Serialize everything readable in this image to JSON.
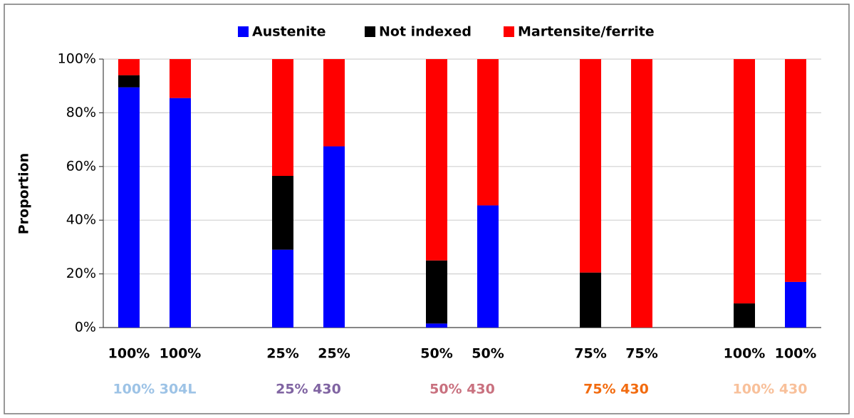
{
  "chart_data": {
    "type": "stacked_bar",
    "y_label": "Proportion",
    "categories": [
      "100%",
      "100%",
      null,
      "25%",
      "25%",
      null,
      "50%",
      "50%",
      null,
      "75%",
      "75%",
      null,
      "100%",
      "100%"
    ],
    "series": [
      {
        "name": "Austenite",
        "color": "#0000ff",
        "values": [
          89.5,
          85.5,
          null,
          29,
          67.5,
          null,
          1.5,
          45.5,
          null,
          0,
          0,
          null,
          0,
          17
        ]
      },
      {
        "name": "Not indexed",
        "color": "#000000",
        "values": [
          4.5,
          0,
          null,
          27.5,
          0,
          null,
          23.5,
          0,
          null,
          20.5,
          0,
          null,
          9,
          0
        ]
      },
      {
        "name": "Martensite/ferrite",
        "color": "#ff0000",
        "values": [
          6,
          14.5,
          null,
          43.5,
          32.5,
          null,
          75,
          54.5,
          null,
          79.5,
          100,
          null,
          91,
          83
        ]
      }
    ],
    "groups": [
      {
        "label": "100% 304L",
        "color": "#9dc3e6"
      },
      {
        "label": "25% 430",
        "color": "#8064a2"
      },
      {
        "label": "50% 430",
        "color": "#c9717f"
      },
      {
        "label": "75% 430",
        "color": "#f26b0f"
      },
      {
        "label": "100% 430",
        "color": "#f8c09a"
      }
    ],
    "ylim": [
      0,
      100
    ],
    "yticks": [
      {
        "value": 0,
        "label": "0%"
      },
      {
        "value": 20,
        "label": "20%"
      },
      {
        "value": 40,
        "label": "40%"
      },
      {
        "value": 60,
        "label": "60%"
      },
      {
        "value": 80,
        "label": "80%"
      },
      {
        "value": 100,
        "label": "100%"
      }
    ],
    "grid": true,
    "legend": "top"
  }
}
